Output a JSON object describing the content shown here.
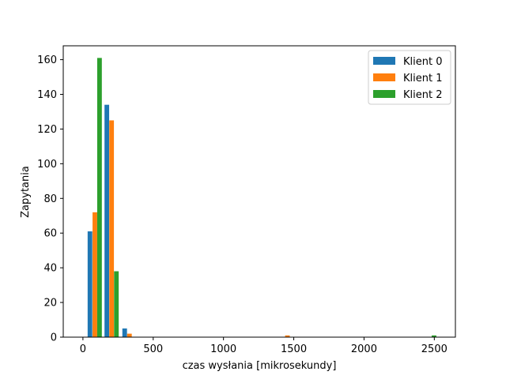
{
  "chart_data": {
    "type": "bar",
    "title": "",
    "xlabel": "czas wysłania [mikrosekundy]",
    "ylabel": "Zapytania",
    "xlim": [
      -140,
      2650
    ],
    "ylim": [
      0,
      168
    ],
    "xticks": [
      0,
      500,
      1000,
      1500,
      2000,
      2500
    ],
    "yticks": [
      0,
      20,
      40,
      60,
      80,
      100,
      120,
      140,
      160
    ],
    "bar_width": 33,
    "grid": false,
    "legend_position": "top-right",
    "series": [
      {
        "name": "Klient 0",
        "color": "#1f77b4",
        "bars": [
          {
            "x": 50,
            "value": 61
          },
          {
            "x": 170,
            "value": 134
          },
          {
            "x": 297,
            "value": 5
          }
        ]
      },
      {
        "name": "Klient 1",
        "color": "#ff7f0e",
        "bars": [
          {
            "x": 85,
            "value": 72
          },
          {
            "x": 204,
            "value": 125
          },
          {
            "x": 331,
            "value": 2
          },
          {
            "x": 1455,
            "value": 1
          }
        ]
      },
      {
        "name": "Klient 2",
        "color": "#2ca02c",
        "bars": [
          {
            "x": 118,
            "value": 161
          },
          {
            "x": 238,
            "value": 38
          },
          {
            "x": 2498,
            "value": 1
          }
        ]
      }
    ]
  }
}
